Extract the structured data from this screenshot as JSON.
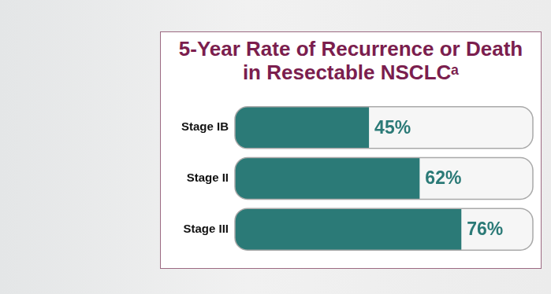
{
  "chart_data": {
    "type": "bar",
    "orientation": "horizontal",
    "title": "5-Year Rate of Recurrence or Death in Resectable NSCLCᵃ",
    "categories": [
      "Stage IB",
      "Stage II",
      "Stage III"
    ],
    "values": [
      45,
      62,
      76
    ],
    "value_labels": [
      "45%",
      "62%",
      "76%"
    ],
    "data_labels": true,
    "color": "#2b7a77",
    "xlim": [
      0,
      100
    ],
    "grid": false,
    "tick_labels": "y"
  }
}
